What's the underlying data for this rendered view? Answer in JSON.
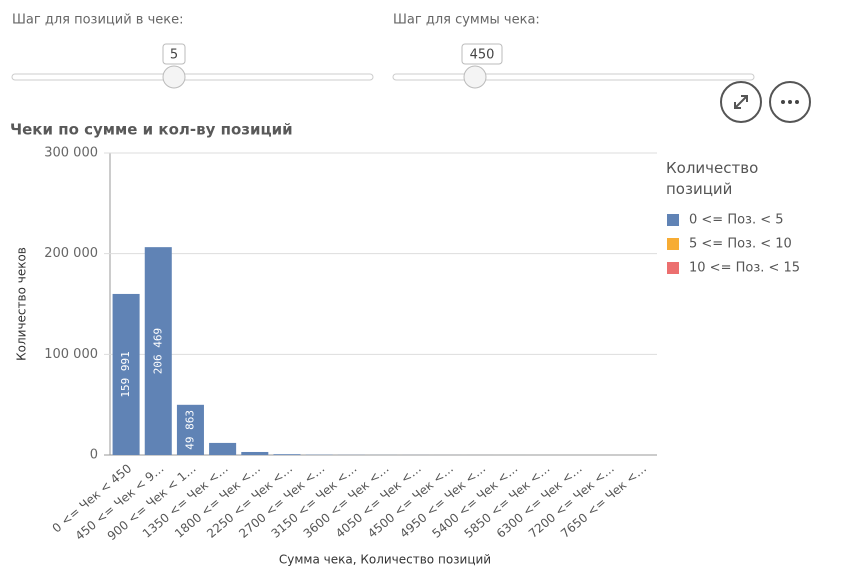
{
  "sliders": [
    {
      "label": "Шаг для позиций в чеке:",
      "value": 5
    },
    {
      "label": "Шаг для суммы чека:",
      "value": 450
    }
  ],
  "chart_data": {
    "type": "bar",
    "stacked": true,
    "title": "Чеки по сумме и кол-ву позиций",
    "x_label": "Сумма чека, Количество позиций",
    "y_label": "Количество чеков",
    "legend_title": "Количество позиций",
    "legend": "right",
    "grid": true,
    "categories": [
      "0 <= Чек < 450",
      "450 <= Чек < 9…",
      "900 <= Чек < 1…",
      "1350 <= Чек <…",
      "1800 <= Чек <…",
      "2250 <= Чек <…",
      "2700 <= Чек <…",
      "3150 <= Чек <…",
      "3600 <= Чек <…",
      "4050 <= Чек <…",
      "4500 <= Чек <…",
      "4950 <= Чек <…",
      "5400 <= Чек <…",
      "5850 <= Чек <…",
      "6300 <= Чек <…",
      "7200 <= Чек <…",
      "7650 <= Чек <…"
    ],
    "series": [
      {
        "name": "0 <= Поз. < 5",
        "color": "#6083b5",
        "values": [
          159991,
          206469,
          49863,
          12000,
          3000,
          800,
          300,
          150,
          100,
          60,
          40,
          30,
          20,
          15,
          10,
          8,
          5
        ],
        "value_labels": [
          "159 991",
          "206 469",
          "49 863",
          null,
          null,
          null,
          null,
          null,
          null,
          null,
          null,
          null,
          null,
          null,
          null,
          null,
          null
        ]
      },
      {
        "name": "5 <= Поз. < 10",
        "color": "#f7ac34",
        "values": [
          0,
          0,
          0,
          0,
          0,
          0,
          0,
          0,
          0,
          0,
          0,
          0,
          0,
          0,
          0,
          0,
          0
        ]
      },
      {
        "name": "10 <= Поз. < 15",
        "color": "#ec6f6f",
        "values": [
          0,
          0,
          0,
          0,
          0,
          0,
          0,
          0,
          0,
          0,
          0,
          0,
          0,
          0,
          0,
          0,
          0
        ]
      }
    ],
    "ylim": [
      0,
      300000
    ],
    "yticks": [
      0,
      {
        "value": 100000,
        "label": "100 000"
      },
      {
        "value": 200000,
        "label": "200 000"
      },
      {
        "value": 300000,
        "label": "300 000"
      }
    ]
  }
}
